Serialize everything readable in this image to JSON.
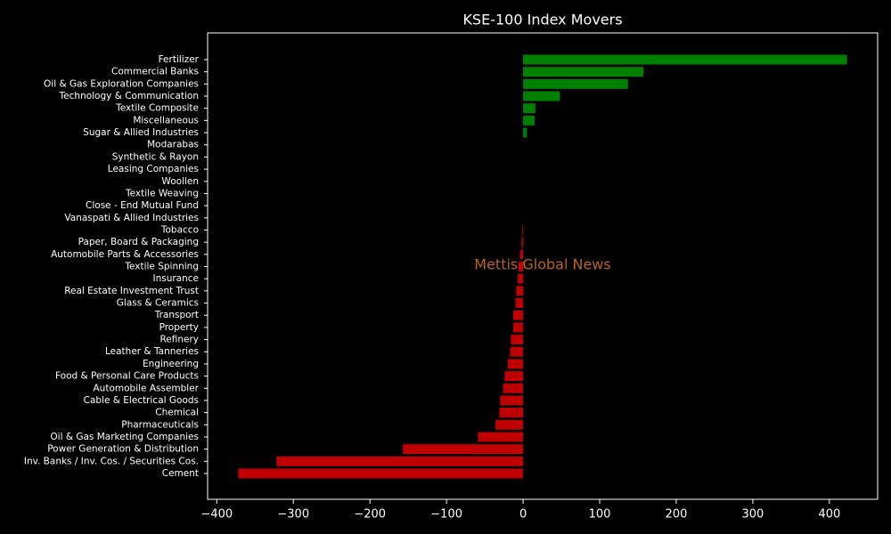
{
  "chart_data": {
    "type": "barh",
    "title": "KSE-100 Index Movers",
    "watermark": "Mettis Global News",
    "categories": [
      "Fertilizer",
      "Commercial Banks",
      "Oil & Gas Exploration Companies",
      "Technology & Communication",
      "Textile Composite",
      "Miscellaneous",
      "Sugar & Allied Industries",
      "Modarabas",
      "Synthetic & Rayon",
      "Leasing Companies",
      "Woollen",
      "Textile Weaving",
      "Close - End Mutual Fund",
      "Vanaspati & Allied Industries",
      "Tobacco",
      "Paper, Board & Packaging",
      "Automobile Parts & Accessories",
      "Textile Spinning",
      "Insurance",
      "Real Estate Investment Trust",
      "Glass & Ceramics",
      "Transport",
      "Property",
      "Refinery",
      "Leather & Tanneries",
      "Engineering",
      "Food & Personal Care Products",
      "Automobile Assembler",
      "Cable & Electrical Goods",
      "Chemical",
      "Pharmaceuticals",
      "Oil & Gas Marketing Companies",
      "Power Generation & Distribution",
      "Inv. Banks / Inv. Cos. / Securities Cos.",
      "Cement"
    ],
    "values": [
      423,
      157,
      137,
      48,
      16,
      15,
      5,
      0,
      0,
      0,
      0,
      0,
      0,
      0,
      -1,
      -2,
      -4,
      -6,
      -7,
      -9,
      -10,
      -13,
      -13,
      -16,
      -17,
      -20,
      -24,
      -26,
      -30,
      -31,
      -36,
      -59,
      -157,
      -322,
      -372
    ],
    "positive_color": "#008000",
    "negative_color": "#c00000",
    "xlim": [
      -412,
      463
    ],
    "xticks": [
      {
        "value": -400,
        "label": "−400"
      },
      {
        "value": -300,
        "label": "−300"
      },
      {
        "value": -200,
        "label": "−200"
      },
      {
        "value": -100,
        "label": "−100"
      },
      0,
      100,
      200,
      300,
      400
    ]
  }
}
